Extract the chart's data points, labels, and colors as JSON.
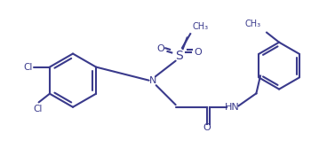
{
  "line_color": "#3a3a8c",
  "bg_color": "#ffffff",
  "line_width": 1.5,
  "figsize": [
    3.77,
    1.85
  ],
  "dpi": 100,
  "xlim": [
    0,
    10
  ],
  "ylim": [
    0,
    5
  ]
}
